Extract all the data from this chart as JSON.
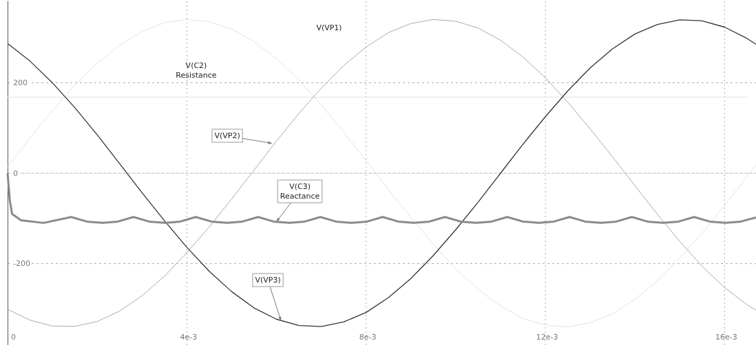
{
  "chart_data": {
    "type": "line",
    "x": [
      0,
      0.0005,
      0.001,
      0.0015,
      0.002,
      0.0025,
      0.003,
      0.0035,
      0.004,
      0.0045,
      0.005,
      0.0055,
      0.006,
      0.0065,
      0.007,
      0.0075,
      0.008,
      0.0085,
      0.009,
      0.0095,
      0.01,
      0.0105,
      0.011,
      0.0115,
      0.012,
      0.0125,
      0.013,
      0.0135,
      0.014,
      0.0145,
      0.015,
      0.0155,
      0.016,
      0.0165,
      0.0167
    ],
    "series": [
      {
        "color": "#e2e2e2",
        "values": [
          14,
          78,
          138,
          194,
          243,
          283,
          313,
          333,
          340,
          335,
          319,
          291,
          253,
          206,
          151,
          91,
          28,
          -36,
          -98,
          -157,
          -211,
          -257,
          -294,
          -321,
          -336,
          -340,
          -331,
          -311,
          -279,
          -238,
          -188,
          -132,
          -71,
          -7,
          18
        ]
      },
      {
        "color": "#e6e6e6",
        "x": [
          0,
          0.004,
          0.008,
          0.012,
          0.0165
        ],
        "values": [
          168,
          168,
          168,
          168,
          168
        ]
      },
      {
        "color": "#aaaaaa",
        "values": [
          -301,
          -325,
          -338,
          -339,
          -328,
          -305,
          -271,
          -228,
          -176,
          -119,
          -57,
          7,
          71,
          132,
          188,
          238,
          279,
          311,
          331,
          340,
          336,
          321,
          294,
          257,
          211,
          157,
          98,
          36,
          -28,
          -91,
          -151,
          -206,
          -253,
          -291,
          -303
        ]
      },
      {
        "color": "#333333",
        "values": [
          287,
          248,
          200,
          145,
          85,
          21,
          -43,
          -105,
          -164,
          -217,
          -262,
          -298,
          -323,
          -337,
          -339,
          -329,
          -308,
          -275,
          -233,
          -182,
          -125,
          -64,
          0,
          64,
          125,
          182,
          233,
          275,
          308,
          329,
          339,
          337,
          323,
          298,
          285
        ]
      },
      {
        "color": "#8a8a8a",
        "x": [
          0,
          5e-05,
          0.0001,
          0.0003,
          0.0008,
          0.00142,
          0.00177,
          0.00212,
          0.00246,
          0.00281,
          0.00316,
          0.00351,
          0.00385,
          0.0042,
          0.00455,
          0.0049,
          0.00524,
          0.00559,
          0.00594,
          0.00629,
          0.00663,
          0.00698,
          0.00733,
          0.00768,
          0.00802,
          0.00837,
          0.00872,
          0.00907,
          0.00941,
          0.00976,
          0.01011,
          0.01046,
          0.0108,
          0.01115,
          0.0115,
          0.01185,
          0.01219,
          0.01254,
          0.01289,
          0.01324,
          0.01358,
          0.01393,
          0.01428,
          0.01463,
          0.01497,
          0.01532,
          0.01567,
          0.01602,
          0.01636,
          0.0167
        ],
        "values": [
          0,
          -60,
          -90,
          -104,
          -110,
          -97,
          -107,
          -110,
          -107,
          -97,
          -107,
          -110,
          -107,
          -97,
          -107,
          -110,
          -107,
          -97,
          -107,
          -110,
          -107,
          -97,
          -107,
          -110,
          -107,
          -97,
          -107,
          -110,
          -107,
          -97,
          -107,
          -110,
          -107,
          -97,
          -107,
          -110,
          -107,
          -97,
          -107,
          -110,
          -107,
          -97,
          -107,
          -110,
          -107,
          -97,
          -107,
          -110,
          -107,
          -98
        ]
      }
    ],
    "xlim": [
      0,
      0.0167
    ],
    "xticks": [
      0,
      {
        "value": 0.004,
        "label": "4e-3"
      },
      {
        "value": 0.008,
        "label": "8e-3"
      },
      {
        "value": 0.012,
        "label": "12e-3"
      },
      {
        "value": 0.016,
        "label": "16e-3"
      }
    ],
    "ylim": [
      -380,
      380
    ],
    "yticks": [
      -200,
      0,
      200
    ],
    "grid": true,
    "annotations": [
      "V(VP1)",
      "V(C2)\nResistance",
      {
        "text": "V(VP2)",
        "x": 0.0059,
        "y": 66
      },
      {
        "text": "V(C3)\nReactance",
        "x": 0.006,
        "y": -107
      },
      {
        "text": "V(VP3)",
        "x": 0.0061,
        "y": -326
      }
    ]
  }
}
